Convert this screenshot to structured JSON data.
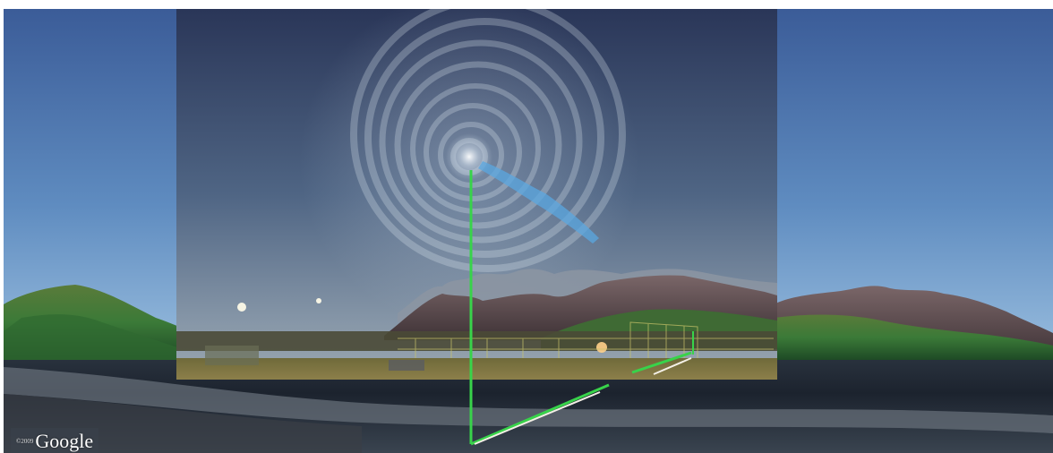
{
  "scene": {
    "background_sky_top": "#3d5e99",
    "background_sky_bottom": "#7eaad2",
    "overlay_sky_top": "#2a3a5e",
    "overlay_sky_bottom": "#8a9cae",
    "guide_line_color": "#38d34a",
    "guide_line_alt_color": "#f4f0e6",
    "spiral_color": "#dfe8f2",
    "spiral_tail_color": "#5aa7e0"
  },
  "watermark": {
    "text": "Google",
    "prefix": "©2009"
  }
}
